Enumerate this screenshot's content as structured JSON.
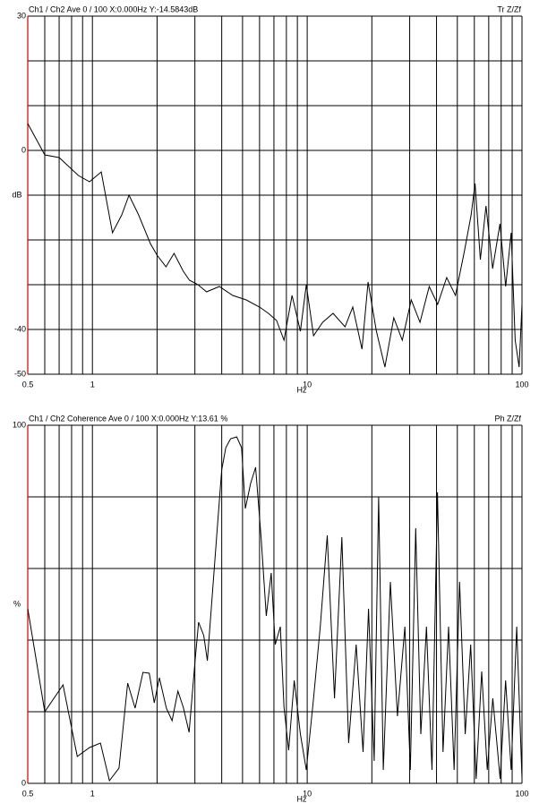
{
  "chart_data": [
    {
      "type": "line",
      "title": "Ch1 / Ch2  Ave 0 / 100  X:0.000Hz  Y:-14.5843dB",
      "mode_label": "Tr Z/Zf",
      "xlabel": "Hz",
      "ylabel": "dB",
      "xscale": "log",
      "grid": true,
      "xlim": [
        0.5,
        100
      ],
      "xticks": [
        0.5,
        1,
        10,
        100
      ],
      "xgrid": [
        0.5,
        0.6,
        0.7,
        0.8,
        0.9,
        1,
        2,
        3,
        4,
        5,
        6,
        7,
        8,
        9,
        10,
        20,
        30,
        40,
        50,
        60,
        70,
        80,
        90,
        100
      ],
      "ylim": [
        -50,
        30
      ],
      "yticks": [
        30,
        0,
        -40,
        -50
      ],
      "ygrid": [
        -50,
        -40,
        -30,
        -20,
        -10,
        0,
        10,
        20,
        30
      ],
      "x": [
        0.5,
        0.6,
        0.7,
        0.86,
        0.97,
        1.1,
        1.24,
        1.37,
        1.48,
        1.64,
        1.86,
        2.0,
        2.2,
        2.4,
        2.65,
        2.83,
        3.1,
        3.4,
        3.9,
        4.5,
        5.2,
        6.0,
        6.6,
        7.2,
        7.8,
        8.5,
        9.3,
        9.9,
        10.7,
        11.8,
        13.2,
        15,
        16.3,
        18,
        19.2,
        21,
        23,
        25.3,
        27.7,
        30.5,
        33.5,
        37,
        40.5,
        44.6,
        49,
        54,
        58,
        60.5,
        64,
        68,
        73,
        79,
        84,
        89,
        93,
        97,
        100
      ],
      "series": [
        {
          "name": "Tr Z/Zf",
          "color": "#000000",
          "values": [
            6,
            -1,
            -1.6,
            -5.6,
            -7,
            -4.8,
            -18.4,
            -14.4,
            -10,
            -14.4,
            -20.8,
            -23.4,
            -26,
            -23,
            -27,
            -29,
            -30,
            -31.6,
            -30.4,
            -32.4,
            -33.4,
            -35,
            -36.4,
            -38,
            -42.4,
            -32.4,
            -40.4,
            -30,
            -41.4,
            -38.4,
            -36.4,
            -39.4,
            -35,
            -44.4,
            -29.4,
            -40.4,
            -48.4,
            -37.4,
            -42.4,
            -33.4,
            -38.4,
            -30.4,
            -34.4,
            -28.4,
            -32.4,
            -22.4,
            -14.4,
            -7.4,
            -24.4,
            -12.4,
            -26.4,
            -16.4,
            -30.4,
            -18.4,
            -42.4,
            -48.4,
            -34.4
          ]
        }
      ]
    },
    {
      "type": "line",
      "title": "Ch1 / Ch2  Coherence Ave 0 / 100  X:0.000Hz  Y:13.61 %",
      "mode_label": "Ph Z/Zf",
      "xlabel": "Hz",
      "ylabel": "%",
      "xscale": "log",
      "grid": true,
      "xlim": [
        0.5,
        100
      ],
      "xticks": [
        0.5,
        1,
        10,
        100
      ],
      "xgrid": [
        0.5,
        0.6,
        0.7,
        0.8,
        0.9,
        1,
        2,
        3,
        4,
        5,
        6,
        7,
        8,
        9,
        10,
        20,
        30,
        40,
        50,
        60,
        70,
        80,
        90,
        100
      ],
      "ylim": [
        0,
        100
      ],
      "yticks": [
        100,
        0
      ],
      "ygrid": [
        0,
        20,
        40,
        60,
        80,
        100
      ],
      "x": [
        0.5,
        0.6,
        0.73,
        0.85,
        0.97,
        1.09,
        1.2,
        1.33,
        1.46,
        1.58,
        1.72,
        1.84,
        1.94,
        2.05,
        2.21,
        2.35,
        2.5,
        2.65,
        2.82,
        3.0,
        3.12,
        3.3,
        3.43,
        3.6,
        3.8,
        4.0,
        4.18,
        4.4,
        4.7,
        4.95,
        5.15,
        5.45,
        5.75,
        6.1,
        6.45,
        6.8,
        7.1,
        7.5,
        7.8,
        8.2,
        8.7,
        9.3,
        9.9,
        10.7,
        11.5,
        12.4,
        13.4,
        14.5,
        15.6,
        16.9,
        18.2,
        19.3,
        20.5,
        21.5,
        22.6,
        24.4,
        26.3,
        28.5,
        30.2,
        32,
        33.8,
        35.9,
        38.1,
        40.4,
        42.9,
        45.5,
        48.3,
        51.2,
        54.4,
        57.7,
        61.2,
        64.9,
        68.9,
        73.1,
        79.1,
        83.9,
        89,
        94.5,
        100
      ],
      "series": [
        {
          "name": "Coherence",
          "color": "#000000",
          "values": [
            48.75,
            20,
            27.5,
            7.5,
            10,
            11.25,
            0.75,
            4.25,
            28,
            21,
            31,
            30.75,
            22.5,
            29.5,
            21,
            17.5,
            25.75,
            21.25,
            14.25,
            33.75,
            45,
            41.25,
            34.25,
            51.25,
            70,
            87.5,
            93.75,
            96.25,
            96.75,
            93.75,
            76.75,
            83.75,
            88.25,
            68.75,
            46.75,
            58.75,
            38.75,
            43.75,
            21.25,
            9.25,
            28.75,
            13.75,
            3.75,
            23.75,
            43.75,
            69.25,
            23.75,
            68.75,
            11.25,
            38.75,
            8.75,
            48.75,
            6.25,
            80,
            3.75,
            56.25,
            18.75,
            43.75,
            3.75,
            71.25,
            13.75,
            43.75,
            3.75,
            81.25,
            8.75,
            43.75,
            3.75,
            56.25,
            13.75,
            38.75,
            1.25,
            31.25,
            3.75,
            23.75,
            1.25,
            28.75,
            3.75,
            43.75,
            1.25
          ]
        }
      ]
    }
  ]
}
